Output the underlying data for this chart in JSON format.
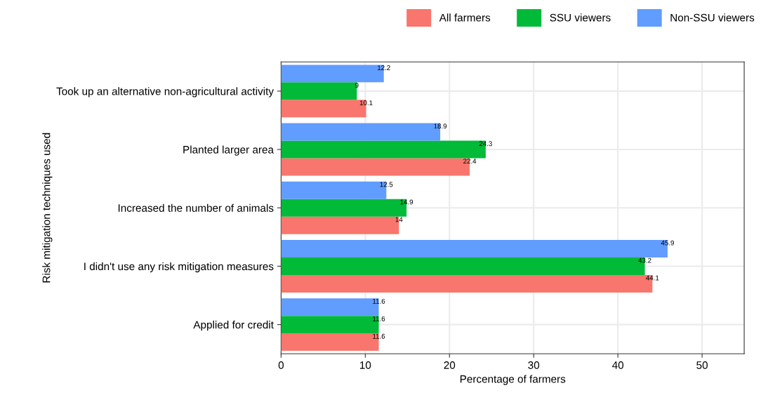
{
  "chart_data": {
    "type": "bar",
    "orientation": "horizontal",
    "xlabel": "Percentage of farmers",
    "ylabel": "Risk mitigation techniques used",
    "categories": [
      "Took up an alternative non-agricultural activity",
      "Planted larger area",
      "Increased the number of animals",
      "I didn't use any risk mitigation measures",
      "Applied for credit"
    ],
    "series": [
      {
        "name": "All farmers",
        "color": "#f8766d",
        "values": [
          10.1,
          22.4,
          14,
          44.1,
          11.6
        ]
      },
      {
        "name": "SSU viewers",
        "color": "#00ba38",
        "values": [
          9,
          24.3,
          14.9,
          43.2,
          11.6
        ]
      },
      {
        "name": "Non-SSU viewers",
        "color": "#619cff",
        "values": [
          12.2,
          18.9,
          12.5,
          45.9,
          11.6
        ]
      }
    ],
    "xlim": [
      0,
      55
    ],
    "xticks": [
      0,
      10,
      20,
      30,
      40,
      50
    ],
    "grid": true,
    "data_labels": true,
    "legend": "top right"
  }
}
